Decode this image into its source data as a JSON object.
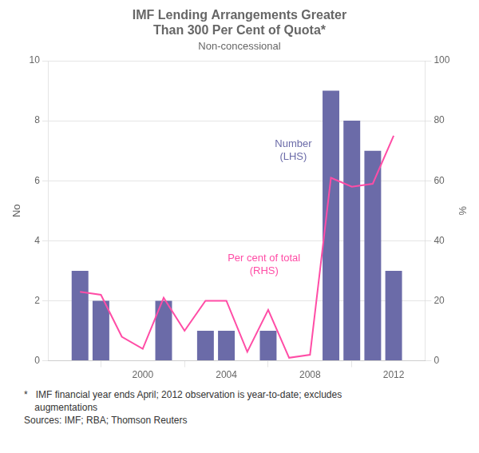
{
  "chart_data": {
    "type": "bar",
    "title": [
      "IMF Lending Arrangements Greater",
      "Than 300 Per Cent of Quota*"
    ],
    "subtitle": "Non-concessional",
    "ylabel": "No",
    "y2label": "%",
    "xlim": [
      1995.5,
      2013.5
    ],
    "xticks": [
      2000,
      2004,
      2008,
      2012
    ],
    "ylim": [
      0,
      10
    ],
    "yticks": [
      0,
      2,
      4,
      6,
      8,
      10
    ],
    "y2lim": [
      0,
      100
    ],
    "y2ticks": [
      0,
      20,
      40,
      60,
      80,
      100
    ],
    "grid": true,
    "series": [
      {
        "type": "bar",
        "color": "#6B6BA8",
        "x": [
          1997,
          1998,
          1999,
          2001,
          2003,
          2004,
          2006,
          2009,
          2010,
          2011,
          2012
        ],
        "values": [
          3,
          2,
          0,
          2,
          1,
          1,
          1,
          9,
          8,
          7,
          3
        ]
      },
      {
        "type": "line",
        "color": "#FF4DA6",
        "axis": "y2",
        "x": [
          1997,
          1998,
          1999,
          2000,
          2001,
          2002,
          2003,
          2004,
          2005,
          2006,
          2007,
          2008,
          2009,
          2010,
          2011,
          2012
        ],
        "values": [
          23,
          22,
          8,
          4,
          21,
          10,
          20,
          20,
          3,
          17,
          1,
          2,
          61,
          58,
          59,
          75
        ]
      }
    ],
    "annotations": [
      {
        "text": "Number\n(LHS)",
        "x": 2007.2,
        "y": 7.0,
        "color": "#6B6BA8"
      },
      {
        "text": "Per cent of total\n(RHS)",
        "x": 2005.8,
        "y": 3.2,
        "color": "#FF4DA6"
      }
    ],
    "footnotes": [
      "*   IMF financial year ends April; 2012 observation is year-to-date; excludes",
      "    augmentations",
      "Sources: IMF; RBA; Thomson Reuters"
    ]
  }
}
